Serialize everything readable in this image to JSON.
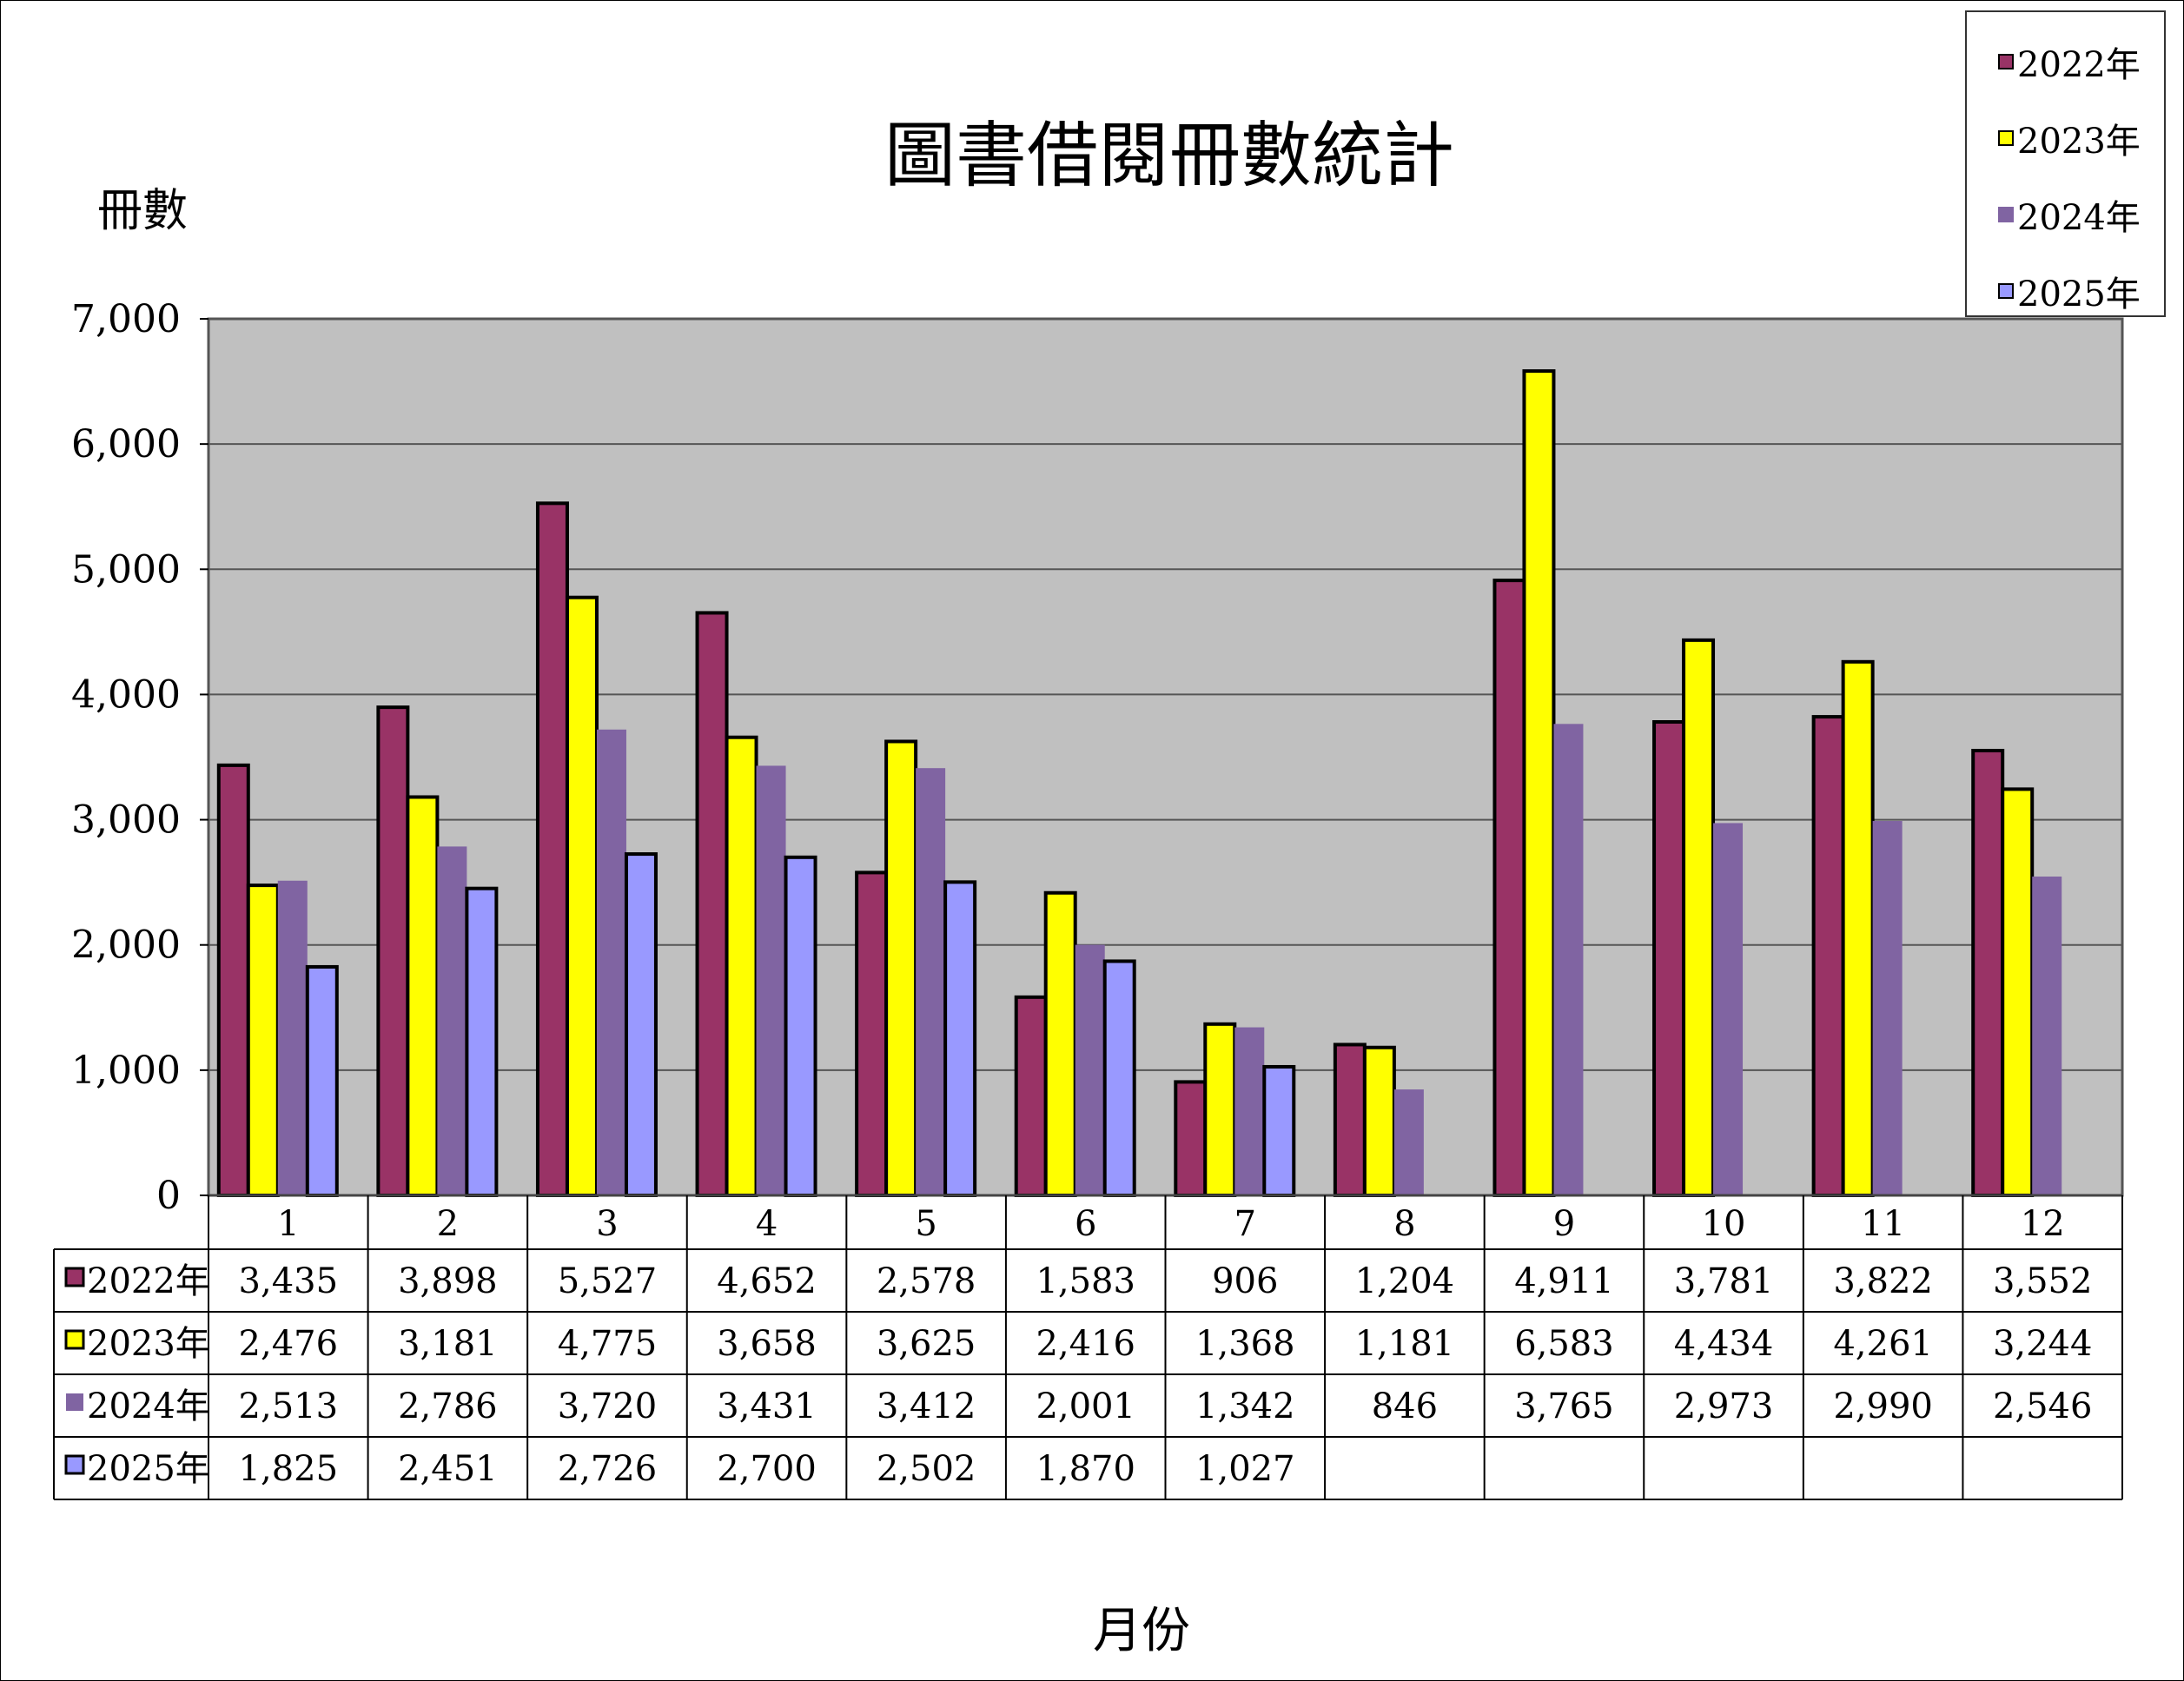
{
  "chart_data": {
    "type": "bar",
    "title": "圖書借閱冊數統計",
    "ylabel": "冊數",
    "xlabel": "月份",
    "ylim": [
      0,
      7000
    ],
    "yticks": [
      "0",
      "1,000",
      "2,000",
      "3,000",
      "4,000",
      "5,000",
      "6,000",
      "7,000"
    ],
    "grid": true,
    "legend_position": "top-right",
    "categories": [
      "1",
      "2",
      "3",
      "4",
      "5",
      "6",
      "7",
      "8",
      "9",
      "10",
      "11",
      "12"
    ],
    "series": [
      {
        "name": "2022年",
        "color": "#993366",
        "border": true,
        "values": [
          3435,
          3898,
          5527,
          4652,
          2578,
          1583,
          906,
          1204,
          4911,
          3781,
          3822,
          3552
        ],
        "labels": [
          "3,435",
          "3,898",
          "5,527",
          "4,652",
          "2,578",
          "1,583",
          "906",
          "1,204",
          "4,911",
          "3,781",
          "3,822",
          "3,552"
        ]
      },
      {
        "name": "2023年",
        "color": "#ffff00",
        "border": true,
        "values": [
          2476,
          3181,
          4775,
          3658,
          3625,
          2416,
          1368,
          1181,
          6583,
          4434,
          4261,
          3244
        ],
        "labels": [
          "2,476",
          "3,181",
          "4,775",
          "3,658",
          "3,625",
          "2,416",
          "1,368",
          "1,181",
          "6,583",
          "4,434",
          "4,261",
          "3,244"
        ]
      },
      {
        "name": "2024年",
        "color": "#8064a2",
        "border": false,
        "values": [
          2513,
          2786,
          3720,
          3431,
          3412,
          2001,
          1342,
          846,
          3765,
          2973,
          2990,
          2546
        ],
        "labels": [
          "2,513",
          "2,786",
          "3,720",
          "3,431",
          "3,412",
          "2,001",
          "1,342",
          "846",
          "3,765",
          "2,973",
          "2,990",
          "2,546"
        ]
      },
      {
        "name": "2025年",
        "color": "#9999ff",
        "border": true,
        "values": [
          1825,
          2451,
          2726,
          2700,
          2502,
          1870,
          1027,
          null,
          null,
          null,
          null,
          null
        ],
        "labels": [
          "1,825",
          "2,451",
          "2,726",
          "2,700",
          "2,502",
          "1,870",
          "1,027",
          "",
          "",
          "",
          "",
          ""
        ]
      }
    ],
    "plot_background": "#c0c0c0"
  }
}
